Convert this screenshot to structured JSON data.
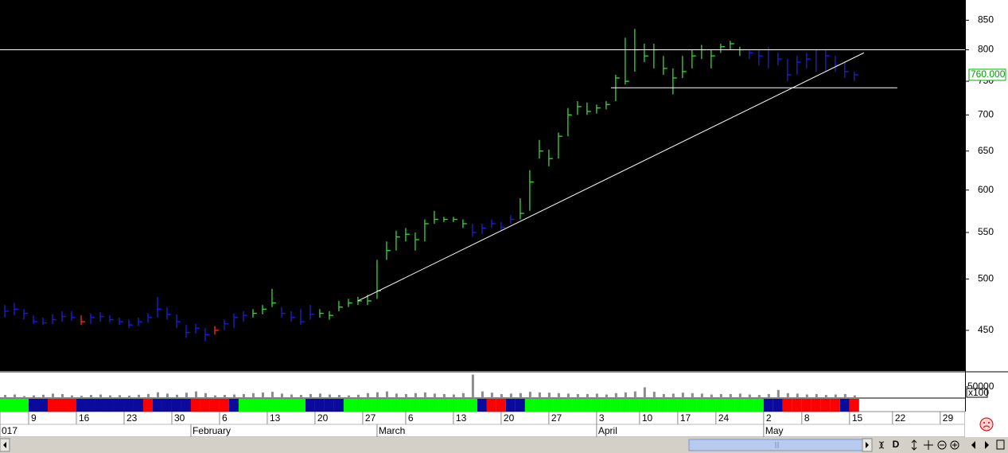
{
  "chart_data": {
    "type": "hlc",
    "log_scale": true,
    "ylim": [
      414,
      886
    ],
    "yticks": [
      450,
      500,
      550,
      600,
      650,
      700,
      750,
      800,
      850
    ],
    "xlim": [
      0,
      101.1
    ],
    "xticks": [
      {
        "value": 3,
        "label": "9"
      },
      {
        "value": 8,
        "label": "16"
      },
      {
        "value": 13,
        "label": "23"
      },
      {
        "value": 18,
        "label": "30"
      },
      {
        "value": 23,
        "label": "6"
      },
      {
        "value": 28,
        "label": "13"
      },
      {
        "value": 33,
        "label": "20"
      },
      {
        "value": 38,
        "label": "27"
      },
      {
        "value": 42.5,
        "label": "6"
      },
      {
        "value": 47.5,
        "label": "13"
      },
      {
        "value": 52.5,
        "label": "20"
      },
      {
        "value": 57.5,
        "label": "27"
      },
      {
        "value": 62.5,
        "label": "3"
      },
      {
        "value": 67,
        "label": "10"
      },
      {
        "value": 71,
        "label": "17"
      },
      {
        "value": 75,
        "label": "24"
      },
      {
        "value": 80,
        "label": "2"
      },
      {
        "value": 84,
        "label": "8"
      },
      {
        "value": 89,
        "label": "15"
      },
      {
        "value": 93.5,
        "label": "22"
      },
      {
        "value": 98.5,
        "label": "29"
      }
    ],
    "month_ticks": [
      {
        "value": 0,
        "label": "017"
      },
      {
        "value": 20,
        "label": "February"
      },
      {
        "value": 39.5,
        "label": "March"
      },
      {
        "value": 62.5,
        "label": "April"
      },
      {
        "value": 80,
        "label": "May"
      }
    ],
    "high": [
      474,
      476,
      470,
      464,
      462,
      465,
      468,
      468,
      464,
      466,
      467,
      464,
      462,
      460,
      462,
      466,
      482,
      472,
      465,
      455,
      456,
      452,
      454,
      460,
      466,
      468,
      470,
      474,
      490,
      472,
      468,
      470,
      474,
      470,
      468,
      478,
      480,
      482,
      484,
      520,
      540,
      552,
      555,
      550,
      565,
      575,
      568,
      568,
      565,
      560,
      560,
      565,
      562,
      570,
      590,
      625,
      665,
      652,
      675,
      710,
      720,
      718,
      715,
      720,
      760,
      820,
      835,
      810,
      810,
      790,
      770,
      790,
      800,
      808,
      800,
      810,
      815,
      805,
      800,
      800,
      805,
      795,
      785,
      790,
      795,
      800,
      800,
      790,
      780,
      765
    ],
    "low": [
      462,
      464,
      460,
      456,
      455,
      456,
      458,
      459,
      455,
      456,
      458,
      457,
      455,
      452,
      454,
      457,
      462,
      460,
      452,
      443,
      447,
      440,
      446,
      450,
      452,
      458,
      462,
      465,
      472,
      462,
      458,
      455,
      460,
      462,
      460,
      468,
      472,
      474,
      474,
      480,
      520,
      530,
      540,
      530,
      540,
      560,
      562,
      562,
      555,
      545,
      548,
      555,
      552,
      560,
      565,
      575,
      640,
      630,
      640,
      670,
      700,
      700,
      702,
      708,
      720,
      745,
      765,
      780,
      770,
      760,
      730,
      755,
      770,
      785,
      770,
      795,
      800,
      790,
      785,
      775,
      770,
      775,
      750,
      760,
      770,
      765,
      765,
      765,
      755,
      750
    ],
    "close": [
      468,
      470,
      466,
      458,
      457,
      460,
      463,
      462,
      458,
      462,
      463,
      460,
      458,
      455,
      458,
      462,
      470,
      465,
      458,
      448,
      452,
      446,
      450,
      456,
      462,
      464,
      466,
      470,
      476,
      466,
      462,
      458,
      465,
      466,
      464,
      472,
      476,
      478,
      478,
      488,
      530,
      545,
      548,
      542,
      560,
      565,
      565,
      565,
      560,
      550,
      555,
      560,
      556,
      565,
      572,
      610,
      650,
      640,
      670,
      700,
      712,
      705,
      710,
      715,
      755,
      750,
      800,
      790,
      800,
      770,
      755,
      765,
      790,
      800,
      790,
      805,
      810,
      800,
      795,
      790,
      800,
      785,
      760,
      780,
      785,
      800,
      790,
      775,
      765,
      760
    ],
    "bar_colors": [
      "b",
      "b",
      "b",
      "b",
      "b",
      "b",
      "b",
      "b",
      "r",
      "b",
      "b",
      "b",
      "b",
      "b",
      "b",
      "b",
      "b",
      "b",
      "b",
      "b",
      "b",
      "b",
      "r",
      "b",
      "b",
      "b",
      "g",
      "g",
      "g",
      "b",
      "b",
      "b",
      "b",
      "g",
      "g",
      "g",
      "g",
      "g",
      "g",
      "g",
      "g",
      "g",
      "g",
      "g",
      "g",
      "g",
      "g",
      "g",
      "g",
      "b",
      "b",
      "b",
      "b",
      "b",
      "g",
      "g",
      "g",
      "g",
      "g",
      "g",
      "g",
      "g",
      "g",
      "g",
      "g",
      "g",
      "g",
      "g",
      "g",
      "g",
      "g",
      "g",
      "g",
      "g",
      "g",
      "g",
      "g",
      "g",
      "b",
      "b",
      "b",
      "b",
      "b",
      "b",
      "b",
      "b",
      "b",
      "b",
      "b",
      "b"
    ],
    "palette": {
      "b": "#1e1ee0",
      "g": "#2ee02e",
      "r": "#ff2a2a"
    },
    "band": [
      "g",
      "g",
      "g",
      "b",
      "b",
      "r",
      "r",
      "r",
      "b",
      "b",
      "b",
      "b",
      "b",
      "b",
      "b",
      "r",
      "b",
      "b",
      "b",
      "b",
      "r",
      "r",
      "r",
      "r",
      "b",
      "g",
      "g",
      "g",
      "g",
      "g",
      "g",
      "g",
      "b",
      "b",
      "b",
      "b",
      "g",
      "g",
      "g",
      "g",
      "g",
      "g",
      "g",
      "g",
      "g",
      "g",
      "g",
      "g",
      "g",
      "g",
      "b",
      "r",
      "r",
      "b",
      "b",
      "g",
      "g",
      "g",
      "g",
      "g",
      "g",
      "g",
      "g",
      "g",
      "g",
      "g",
      "g",
      "g",
      "g",
      "g",
      "g",
      "g",
      "g",
      "g",
      "g",
      "g",
      "g",
      "g",
      "g",
      "g",
      "b",
      "b",
      "r",
      "r",
      "r",
      "r",
      "r",
      "r",
      "b",
      "r"
    ],
    "band_palette": {
      "b": "#0a0a9c",
      "g": "#00ff00",
      "r": "#ff0000"
    },
    "volume": [
      14000,
      16000,
      9000,
      12000,
      15000,
      20000,
      18000,
      12000,
      10000,
      14000,
      16000,
      12000,
      13000,
      11000,
      15000,
      18000,
      26000,
      20000,
      15000,
      24000,
      30000,
      22000,
      12000,
      14000,
      16000,
      18000,
      22000,
      25000,
      28000,
      20000,
      16000,
      14000,
      18000,
      20000,
      16000,
      14000,
      12000,
      15000,
      22000,
      26000,
      30000,
      20000,
      18000,
      22000,
      25000,
      20000,
      18000,
      16000,
      22000,
      105000,
      30000,
      24000,
      18000,
      20000,
      22000,
      28000,
      25000,
      24000,
      22000,
      20000,
      18000,
      18000,
      20000,
      16000,
      22000,
      25000,
      30000,
      48000,
      28000,
      18000,
      20000,
      24000,
      22000,
      20000,
      16000,
      18000,
      18000,
      20000,
      16000,
      14000,
      18000,
      36000,
      22000,
      20000,
      16000,
      18000,
      14000,
      16000,
      18000,
      12000
    ],
    "volume_color": "#8c8c8c",
    "volume_ylim": [
      0,
      114000
    ],
    "volume_yticks": [
      50000
    ],
    "volume_unit_label": "x100",
    "last_price": {
      "value": 760,
      "label": "760.000"
    },
    "lines": [
      {
        "y": 800
      },
      {
        "y": 740,
        "x": [
          64,
          94
        ]
      },
      {
        "x": [
          37.5,
          90.5
        ],
        "y": [
          478,
          795
        ]
      }
    ],
    "line_color": "#ffffff",
    "toolbar_label": "D"
  }
}
